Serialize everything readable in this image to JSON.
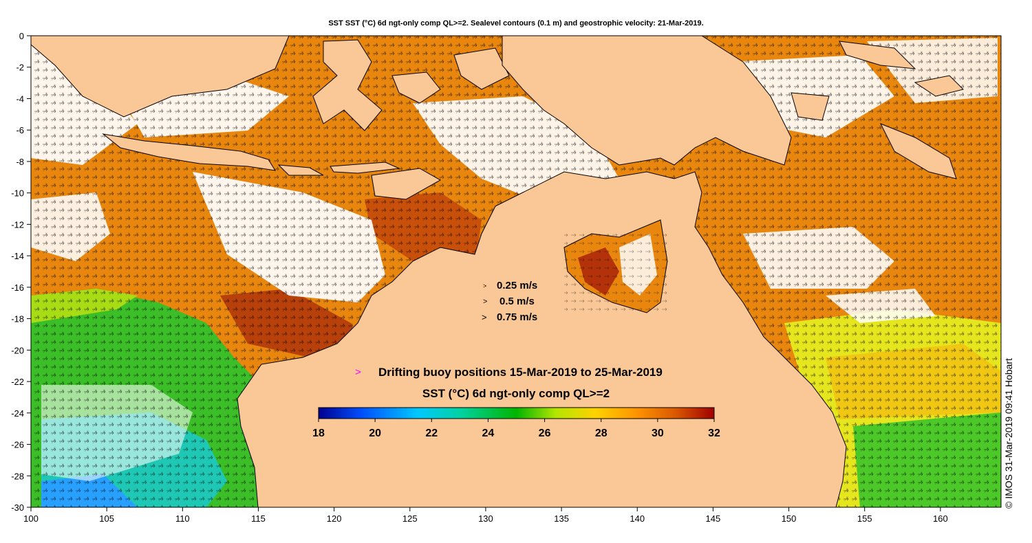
{
  "title": "SST SST (°C) 6d ngt-only comp QL>=2. Sealevel contours (0.1 m) and geostrophic velocity: 21-Mar-2019.",
  "credit": "© IMOS 31-Mar-2019 09:41 Hobart",
  "axes": {
    "x_ticks": [
      "100",
      "105",
      "110",
      "115",
      "120",
      "125",
      "130",
      "135",
      "140",
      "145",
      "150",
      "155",
      "160"
    ],
    "y_ticks": [
      "0",
      "-2",
      "-4",
      "-6",
      "-8",
      "-10",
      "-12",
      "-14",
      "-16",
      "-18",
      "-20",
      "-22",
      "-24",
      "-26",
      "-28",
      "-30"
    ],
    "lon_range": [
      100,
      164
    ],
    "lat_range": [
      -30,
      0
    ]
  },
  "velocity_legend": [
    {
      "marker": ">",
      "label": "0.25 m/s"
    },
    {
      "marker": ">",
      "label": "0.5 m/s"
    },
    {
      "marker": ">",
      "label": "0.75 m/s"
    }
  ],
  "buoy_legend": {
    "marker": ">",
    "label": "Drifting buoy positions 15-Mar-2019 to 25-Mar-2019",
    "color": "#ff00ff"
  },
  "colorbar": {
    "title": "SST (°C) 6d ngt-only comp QL>=2",
    "ticks": [
      "18",
      "20",
      "22",
      "24",
      "26",
      "28",
      "30",
      "32"
    ],
    "min": 18,
    "max": 32,
    "colors": [
      "#00008f",
      "#0050ff",
      "#00c8ff",
      "#00d2a0",
      "#00b400",
      "#b4e600",
      "#ffd200",
      "#ff9600",
      "#dc5a00",
      "#a00000"
    ]
  },
  "colors": {
    "land": "#fac896",
    "sst_main": "#e8820a",
    "sst_hot": "#b8400a",
    "sst_cool": "#3cbe28",
    "cloud": "#ffffff"
  }
}
